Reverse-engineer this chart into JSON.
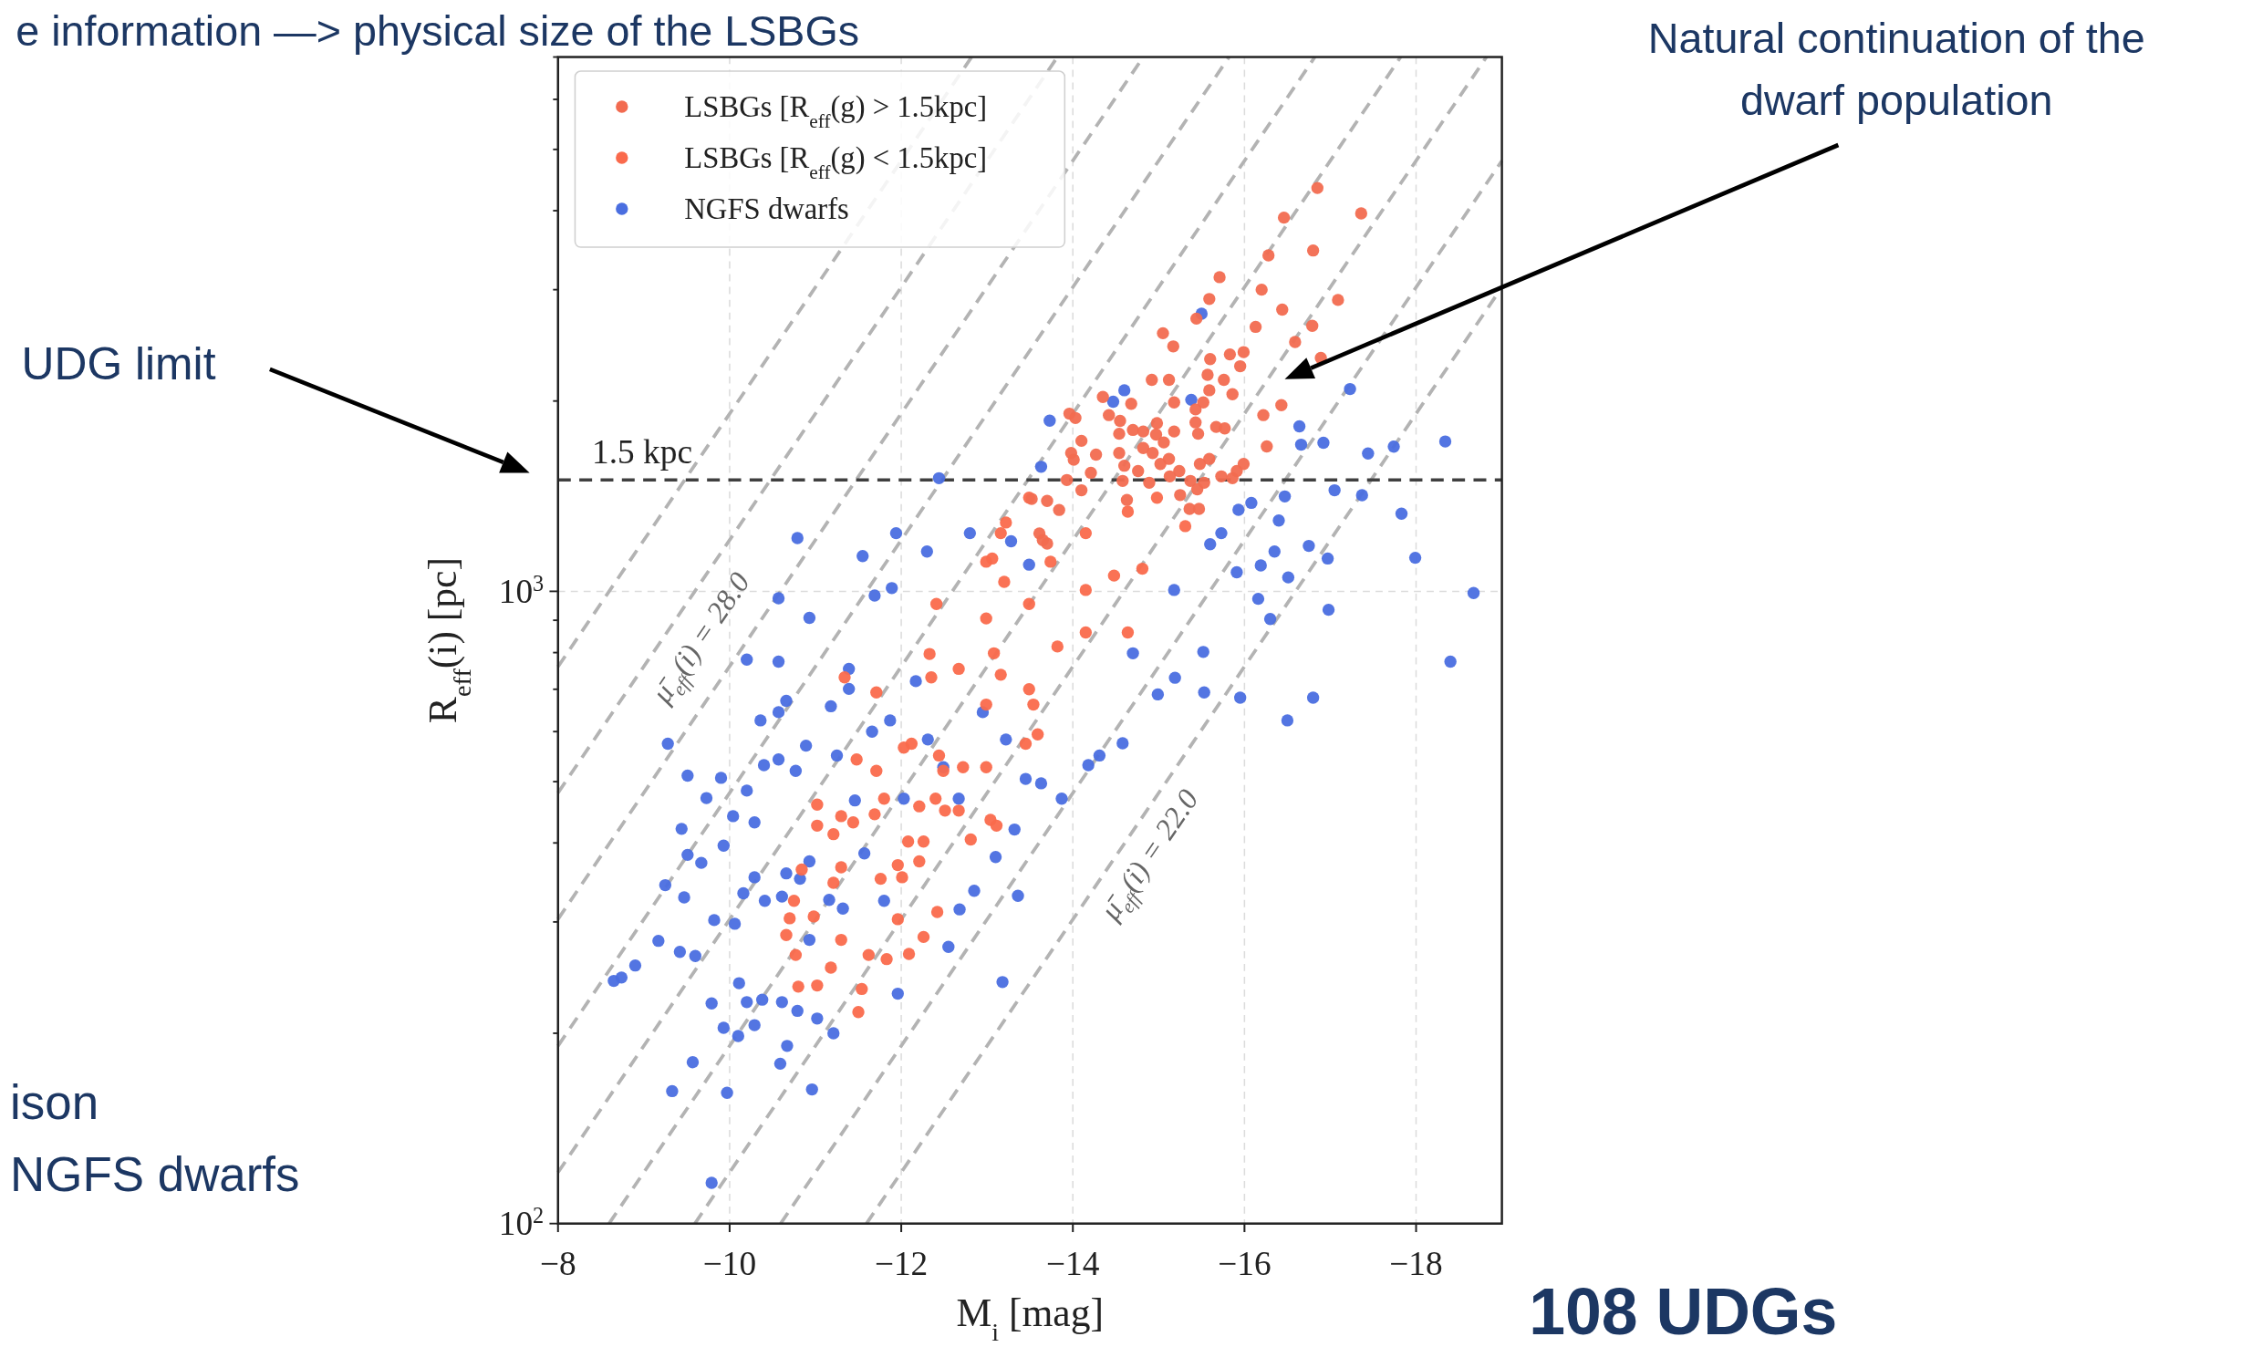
{
  "chart_data": {
    "type": "scatter",
    "xlabel": "M$_{i}$ [mag]",
    "ylabel": "R$_{eff}$(i) [pc]",
    "xlim": [
      -8,
      -19
    ],
    "ylim": [
      100,
      7000
    ],
    "log": "y",
    "xticks": [
      {
        "value": -8,
        "label": "−8"
      },
      {
        "value": -10,
        "label": "−10"
      },
      {
        "value": -12,
        "label": "−12"
      },
      {
        "value": -14,
        "label": "−14"
      },
      {
        "value": -16,
        "label": "−16"
      },
      {
        "value": -18,
        "label": "−18"
      }
    ],
    "yticks": [
      {
        "value": 100,
        "label": "10$^{2}$"
      },
      {
        "value": 200,
        "label": null
      },
      {
        "value": 300,
        "label": null
      },
      {
        "value": 400,
        "label": null
      },
      {
        "value": 500,
        "label": null
      },
      {
        "value": 600,
        "label": null
      },
      {
        "value": 700,
        "label": null
      },
      {
        "value": 800,
        "label": null
      },
      {
        "value": 900,
        "label": null
      },
      {
        "value": 1000,
        "label": "10$^{3}$"
      },
      {
        "value": 2000,
        "label": null
      },
      {
        "value": 3000,
        "label": null
      },
      {
        "value": 4000,
        "label": null
      },
      {
        "value": 5000,
        "label": null
      },
      {
        "value": 6000,
        "label": null
      },
      {
        "value": 7000,
        "label": null
      }
    ],
    "grid": true,
    "legend": "top left",
    "ref_lines": [
      {
        "axis": "y",
        "value": 1500,
        "label": "1.5 kpc",
        "color": "#404040",
        "line_style": "dashed"
      }
    ],
    "annotations": [
      "e information —> physical size of the LSBGs",
      "UDG limit",
      "Natural continuation of the\ndwarf population",
      "ison\nNGFS dwarfs",
      "108 UDGs",
      "μ̄$_{eff}$(i) = 28.0",
      "μ̄$_{eff}$(i) = 22.0"
    ],
    "series": [
      {
        "type": "line",
        "color": "#b3b3b3",
        "line_style": "dashed",
        "x": [
          -8,
          -12.82
        ],
        "values": [
          760,
          7000
        ]
      },
      {
        "type": "line",
        "color": "#b3b3b3",
        "line_style": "dashed",
        "x": [
          -8,
          -13.82
        ],
        "values": [
          480,
          7000
        ]
      },
      {
        "type": "line",
        "color": "#b3b3b3",
        "line_style": "dashed",
        "x": [
          -8,
          -14.82
        ],
        "values": [
          303,
          7000
        ]
      },
      {
        "type": "line",
        "color": "#b3b3b3",
        "line_style": "dashed",
        "x": [
          -8,
          -15.82
        ],
        "values": [
          191,
          7000
        ]
      },
      {
        "type": "line",
        "color": "#b3b3b3",
        "line_style": "dashed",
        "x": [
          -8,
          -16.82
        ],
        "values": [
          120.5,
          7000
        ]
      },
      {
        "type": "line",
        "color": "#b3b3b3",
        "line_style": "dashed",
        "x": [
          -8.595,
          -17.82
        ],
        "values": [
          100,
          7000
        ]
      },
      {
        "type": "line",
        "color": "#b3b3b3",
        "line_style": "dashed",
        "x": [
          -9.595,
          -18.82
        ],
        "values": [
          100,
          7000
        ]
      },
      {
        "type": "line",
        "color": "#b3b3b3",
        "line_style": "dashed",
        "x": [
          -10.595,
          -19
        ],
        "values": [
          100,
          4797
        ]
      },
      {
        "type": "line",
        "color": "#b3b3b3",
        "line_style": "dashed",
        "x": [
          -11.595,
          -19
        ],
        "values": [
          100,
          3027
        ]
      },
      {
        "name": "LSBGs [R$_{eff}$(g) > 1.5kpc]",
        "color": "#f26b50",
        "marker": "circle",
        "x": [
          -16.85,
          -16.46,
          -17.36,
          -16.28,
          -16.8,
          -15.71,
          -16.2,
          -15.59,
          -16.44,
          -17.09,
          -15.44,
          -16.13,
          -16.79,
          -15.05,
          -15.17,
          -16.59,
          -16.89,
          -15.6,
          -15.83,
          -15.99,
          -15.95,
          -15.57,
          -15.76,
          -14.92,
          -15.12,
          -15.59,
          -15.86,
          -16.43,
          -16.22,
          -14.35,
          -14.68,
          -15.18,
          -15.52,
          -15.43,
          -14.42,
          -14.55,
          -13.96,
          -14.03,
          -14.98,
          -15.43,
          -15.67,
          -15.77,
          -14.7,
          -14.82,
          -15.18,
          -14.54,
          -14.97,
          -15.46,
          -14.1,
          -15.06,
          -16.26,
          -14.82,
          -13.98,
          -14.27,
          -14.54,
          -14.93,
          -14.01,
          -15.12,
          -15.59,
          -14.6,
          -15.02,
          -15.48,
          -15.99,
          -14.21,
          -14.76,
          -15.24,
          -15.91,
          -15.13,
          -15.73,
          -15.86,
          -13.93,
          -14.58,
          -14.89,
          -15.37,
          -15.53,
          -14.1,
          -15.25,
          -14.63,
          -15.45,
          -15.36,
          -15.47,
          -13.84,
          -13.52,
          -13.7,
          -13.61,
          -13.7,
          -13.65
        ],
        "values": [
          4345,
          3900,
          3960,
          3400,
          3460,
          3140,
          3000,
          2900,
          2790,
          2890,
          2700,
          2620,
          2630,
          2560,
          2440,
          2480,
          2340,
          2330,
          2370,
          2390,
          2270,
          2200,
          2160,
          2160,
          2160,
          2080,
          2050,
          1970,
          1900,
          2030,
          1980,
          1990,
          1990,
          1940,
          1900,
          1860,
          1910,
          1880,
          1845,
          1850,
          1820,
          1810,
          1800,
          1790,
          1790,
          1775,
          1770,
          1775,
          1730,
          1720,
          1695,
          1685,
          1655,
          1645,
          1655,
          1655,
          1615,
          1620,
          1620,
          1580,
          1590,
          1590,
          1590,
          1540,
          1550,
          1550,
          1550,
          1520,
          1520,
          1510,
          1500,
          1495,
          1485,
          1495,
          1485,
          1445,
          1420,
          1395,
          1450,
          1350,
          1350,
          1345,
          1400,
          1390,
          1235,
          1190,
          1205
        ]
      },
      {
        "name": "LSBGs [R$_{eff}$(g) < 1.5kpc]",
        "color": "#fa6a4c",
        "marker": "circle",
        "x": [
          -11.5,
          -11.54,
          -11.02,
          -10.8,
          -11.83,
          -12.09,
          -12.26,
          -12.42,
          -11.96,
          -11.62,
          -11.3,
          -10.66,
          -10.77,
          -10.75,
          -10.7,
          -10.98,
          -11.18,
          -10.84,
          -11.3,
          -11.21,
          -11.76,
          -12.01,
          -12.21,
          -11.96,
          -12.26,
          -12.08,
          -11.02,
          -11.3,
          -11.44,
          -11.21,
          -11.02,
          -11.69,
          -11.8,
          -12.21,
          -12.4,
          -12.51,
          -12.81,
          -13.04,
          -13.11,
          -12.67,
          -12.03,
          -12.12,
          -11.48,
          -11.71,
          -12.44,
          -12.49,
          -12.72,
          -12.99,
          -13.45,
          -13.59,
          -11.34,
          -11.71,
          -12.35,
          -12.67,
          -13.08,
          -13.54,
          -12.99,
          -13.16,
          -13.49,
          -14.15,
          -14.64,
          -13.74,
          -12.99,
          -12.41,
          -12.99,
          -13.49,
          -14.15,
          -14.48,
          -12.33,
          -13.16,
          -13.82,
          -14.98,
          -15.31,
          -13.22,
          -13.06,
          -13.2,
          -14.64,
          -14.81,
          -14.15,
          -13.49
        ],
        "values": [
          216,
          235,
          238,
          237,
          262,
          267,
          284,
          311,
          303,
          266,
          281,
          286,
          266,
          324,
          304,
          306,
          254,
          363,
          366,
          346,
          351,
          353,
          374,
          369,
          402,
          402,
          426,
          441,
          431,
          413,
          460,
          444,
          470,
          457,
          470,
          450,
          405,
          435,
          426,
          450,
          566,
          574,
          542,
          520,
          550,
          520,
          527,
          527,
          574,
          594,
          731,
          692,
          731,
          754,
          798,
          662,
          662,
          1236,
          1406,
          1236,
          1337,
          1114,
          1114,
          955,
          906,
          955,
          1005,
          1059,
          796,
          738,
          818,
          1406,
          1268,
          1285,
          1127,
          1035,
          861,
          1086,
          861,
          700
        ]
      },
      {
        "name": "NGFS dwarfs",
        "color": "#4a6ee0",
        "marker": "circle",
        "x": [
          -9.79,
          -9.33,
          -9.97,
          -10.96,
          -8.65,
          -8.74,
          -8.9,
          -9.28,
          -9.17,
          -9.57,
          -10.59,
          -10.67,
          -11.21,
          -11.96,
          -13.18,
          -12.55,
          -12.68,
          -13.36,
          -12.85,
          -13.1,
          -13.32,
          -9.44,
          -9.51,
          -9.73,
          -9.9,
          -9.51,
          -9.67,
          -9.25,
          -9.47,
          -9.82,
          -9.42,
          -9.6,
          -9.79,
          -9.93,
          -10.1,
          -10.29,
          -10.11,
          -10.2,
          -10.06,
          -10.38,
          -10.61,
          -10.79,
          -11.02,
          -10.16,
          -10.29,
          -10.41,
          -10.66,
          -10.61,
          -10.82,
          -10.93,
          -11.16,
          -11.32,
          -10.93,
          -9.93,
          -10.04,
          -10.29,
          -10.2,
          -10.4,
          -10.57,
          -10.77,
          -10.89,
          -10.36,
          -10.57,
          -10.2,
          -10.57,
          -10.66,
          -11.18,
          -11.39,
          -11.39,
          -11.25,
          -11.46,
          -11.66,
          -11.87,
          -12.03,
          -11.57,
          -11.8,
          -12.17,
          -12.31,
          -12.49,
          -12.67,
          -12.95,
          -13.22,
          -13.45,
          -13.63,
          -10.79,
          -11.94,
          -12.44,
          -11.55,
          -12.3,
          -10.57,
          -10.93,
          -11.69,
          -11.89,
          -12.8,
          -13.28,
          -13.73,
          -13.63,
          -13.49,
          -15.5,
          -14.6,
          -14.47,
          -15.38,
          -16.64,
          -16.66,
          -16.92,
          -17.44,
          -17.74,
          -18.34,
          -17.23,
          -17.05,
          -17.37,
          -17.83,
          -17.99,
          -18.67,
          -16.98,
          -16.3,
          -16.16,
          -16.51,
          -16.75,
          -16.97,
          -16.35,
          -16.19,
          -15.93,
          -16.08,
          -16.4,
          -16.47,
          -15.73,
          -15.6,
          -15.18,
          -15.91,
          -18.4,
          -16.8,
          -16.5,
          -15.95,
          -15.53,
          -14.99,
          -15.19,
          -14.58,
          -14.31,
          -14.18,
          -13.87,
          -15.52,
          -14.7
        ],
        "values": [
          116,
          162,
          161,
          163,
          242,
          245,
          256,
          574,
          280,
          180,
          179,
          191,
          200,
          231,
          241,
          274,
          314,
          330,
          336,
          380,
          420,
          421,
          511,
          471,
          507,
          383,
          372,
          343,
          328,
          302,
          269,
          265,
          223,
          204,
          198,
          206,
          240,
          224,
          298,
          226,
          224,
          217,
          211,
          333,
          353,
          324,
          358,
          329,
          351,
          374,
          325,
          315,
          281,
          396,
          441,
          431,
          484,
          531,
          542,
          520,
          570,
          625,
          644,
          780,
          774,
          671,
          658,
          754,
          701,
          550,
          467,
          600,
          625,
          470,
          385,
          324,
          721,
          583,
          527,
          470,
          644,
          583,
          505,
          497,
          1214,
          1236,
          1510,
          1137,
          1156,
          975,
          908,
          985,
          1012,
          1236,
          1200,
          1862,
          1574,
          1102,
          2748,
          2080,
          1995,
          2009,
          1824,
          1706,
          1718,
          1652,
          1694,
          1726,
          2089,
          1445,
          1419,
          1327,
          1130,
          994,
          935,
          904,
          973,
          1052,
          1180,
          1127,
          1156,
          1099,
          1346,
          1380,
          1294,
          1413,
          1236,
          1187,
          1005,
          1072,
          774,
          679,
          625,
          679,
          692,
          687,
          730,
          575,
          550,
          531,
          470,
          802,
          798
        ]
      }
    ]
  }
}
